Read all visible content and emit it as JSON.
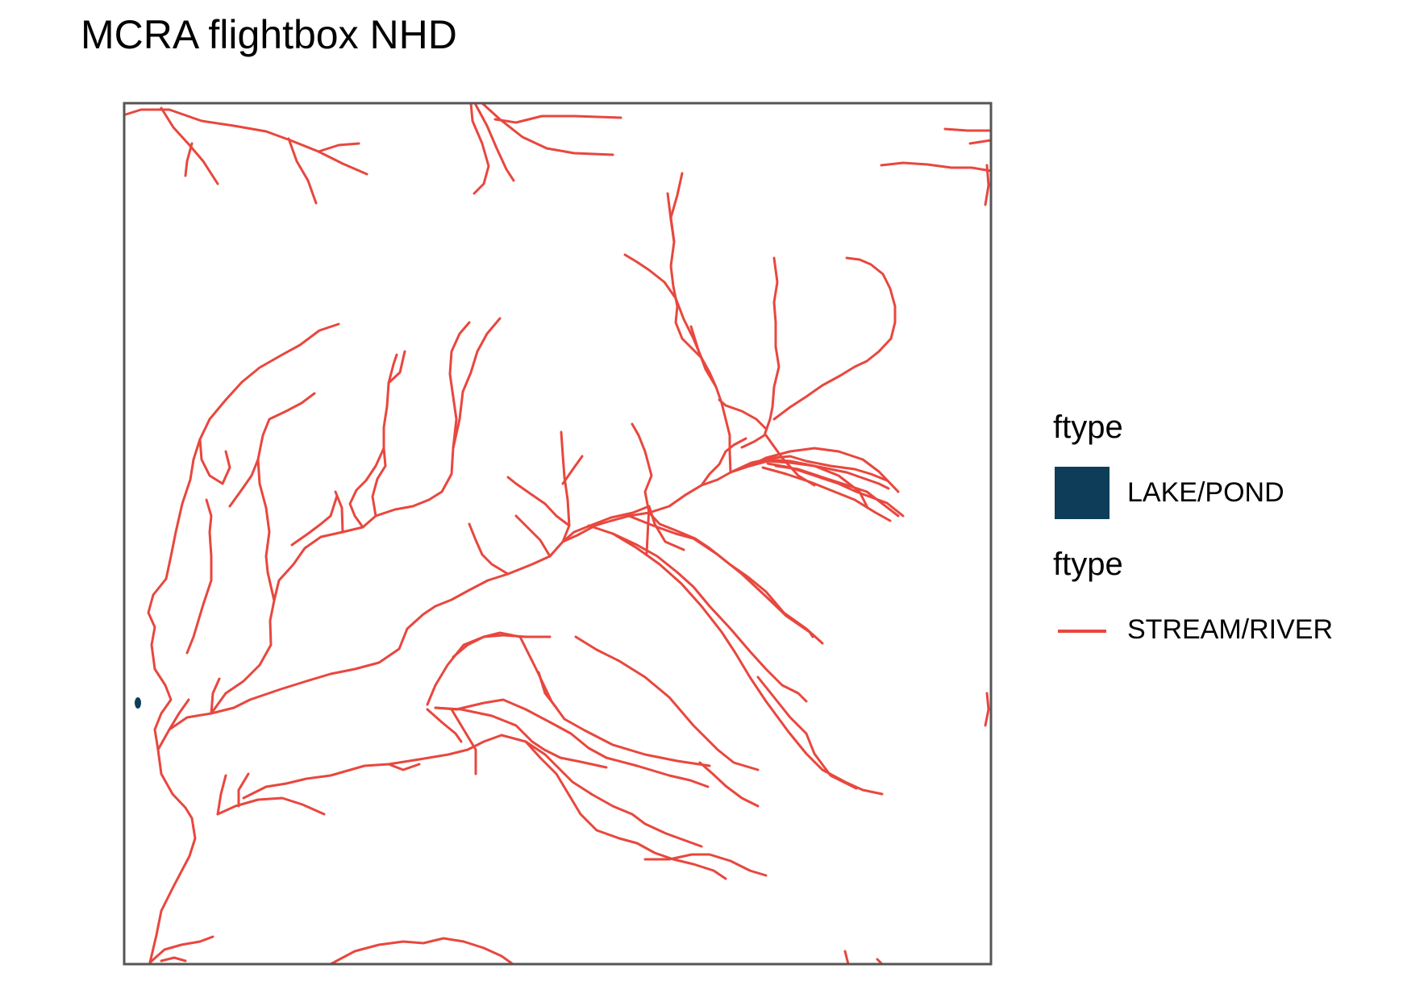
{
  "title": "MCRA flightbox NHD",
  "colors": {
    "stream": "#E8473E",
    "lake": "#0E3D5A",
    "frame": "#555555"
  },
  "legend": {
    "lake": {
      "title": "ftype",
      "label": "LAKE/POND"
    },
    "stream": {
      "title": "ftype",
      "label": "STREAM/RIVER"
    }
  }
}
